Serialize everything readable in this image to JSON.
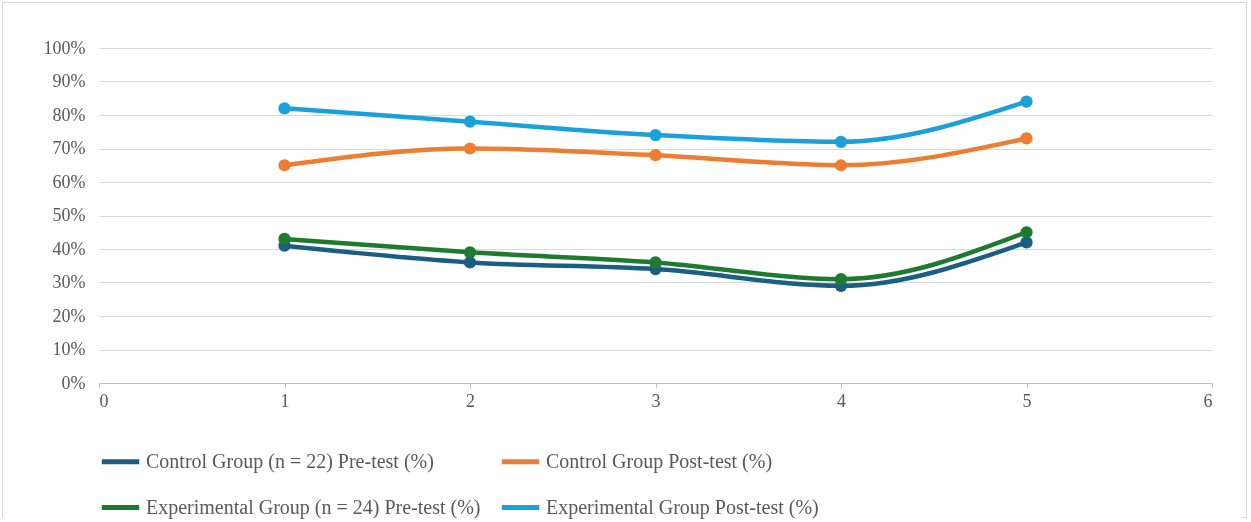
{
  "chart_data": {
    "type": "line",
    "x": [
      1,
      2,
      3,
      4,
      5
    ],
    "series": [
      {
        "name": "Control Group (n = 22) Pre-test (%)",
        "color": "#1b5e84",
        "values": [
          41,
          36,
          34,
          29,
          42
        ]
      },
      {
        "name": "Control Group Post-test (%)",
        "color": "#ed7d31",
        "values": [
          65,
          70,
          68,
          65,
          73
        ]
      },
      {
        "name": "Experimental Group (n = 24) Pre-test (%)",
        "color": "#1e7a2e",
        "values": [
          43,
          39,
          36,
          31,
          45
        ]
      },
      {
        "name": "Experimental Group Post-test (%)",
        "color": "#1aa1dc",
        "values": [
          82,
          78,
          74,
          72,
          84
        ]
      }
    ],
    "xlim": [
      0,
      6
    ],
    "xticks": [
      0,
      1,
      2,
      3,
      4,
      5,
      6
    ],
    "ylim": [
      0,
      100
    ],
    "yticks": [
      {
        "value": 0,
        "label": "0%"
      },
      {
        "value": 10,
        "label": "10%"
      },
      {
        "value": 20,
        "label": "20%"
      },
      {
        "value": 30,
        "label": "30%"
      },
      {
        "value": 40,
        "label": "40%"
      },
      {
        "value": 50,
        "label": "50%"
      },
      {
        "value": 60,
        "label": "60%"
      },
      {
        "value": 70,
        "label": "70%"
      },
      {
        "value": 80,
        "label": "80%"
      },
      {
        "value": 90,
        "label": "90%"
      },
      {
        "value": 100,
        "label": "100%"
      }
    ],
    "grid": "y",
    "legend": "bottom",
    "marker": "circle",
    "line_style": "solid"
  }
}
